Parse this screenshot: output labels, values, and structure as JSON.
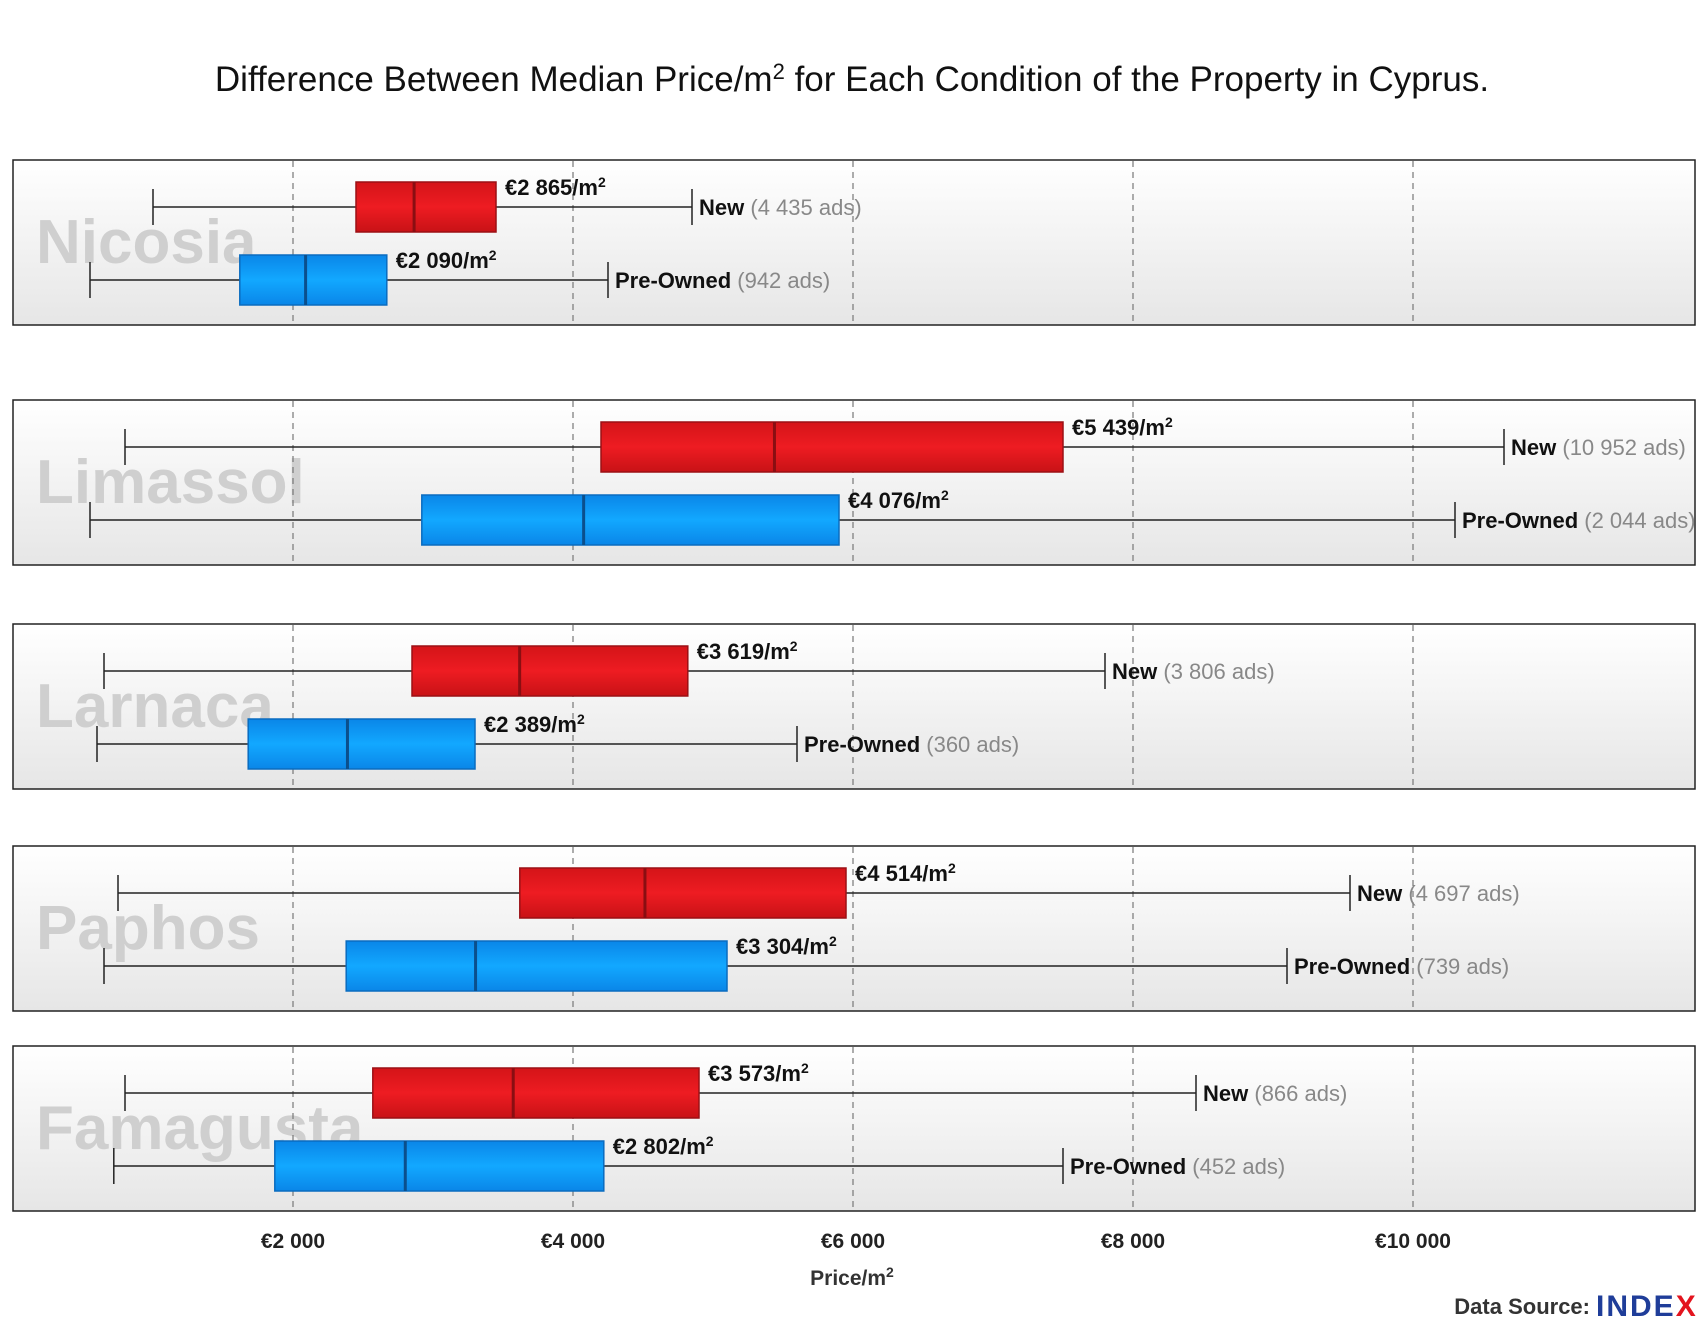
{
  "chart_data": {
    "type": "boxplot",
    "title": "Difference Between Median Price/m",
    "title_sup": "2",
    "title_rest": " for Each Condition of the Property in Cyprus.",
    "xlabel": "Price/m",
    "xlabel_sup": "2",
    "xlim": [
      0,
      12000
    ],
    "xticks": [
      2000,
      4000,
      6000,
      8000,
      10000
    ],
    "xtick_labels": [
      "€2 000",
      "€4 000",
      "€6 000",
      "€8 000",
      "€10 000"
    ],
    "grid": "vertical dashed",
    "value_suffix": "/m",
    "value_sup": "2",
    "colors": {
      "New": "#e41a1c",
      "Pre-Owned": "#0a9cf5"
    },
    "panels": [
      {
        "city": "Nicosia",
        "series": [
          {
            "condition": "New",
            "count_text": "(4 435 ads)",
            "whisker_low": 1000,
            "q1": 2450,
            "median": 2865,
            "q3": 3450,
            "whisker_high": 4850,
            "median_label": "€2 865"
          },
          {
            "condition": "Pre-Owned",
            "count_text": "(942 ads)",
            "whisker_low": 550,
            "q1": 1620,
            "median": 2090,
            "q3": 2670,
            "whisker_high": 4250,
            "median_label": "€2 090"
          }
        ]
      },
      {
        "city": "Limassol",
        "series": [
          {
            "condition": "New",
            "count_text": "(10 952 ads)",
            "whisker_low": 800,
            "q1": 4200,
            "median": 5439,
            "q3": 7500,
            "whisker_high": 10650,
            "median_label": "€5 439"
          },
          {
            "condition": "Pre-Owned",
            "count_text": "(2 044 ads)",
            "whisker_low": 550,
            "q1": 2920,
            "median": 4076,
            "q3": 5900,
            "whisker_high": 10300,
            "median_label": "€4 076"
          }
        ]
      },
      {
        "city": "Larnaca",
        "series": [
          {
            "condition": "New",
            "count_text": "(3 806 ads)",
            "whisker_low": 650,
            "q1": 2850,
            "median": 3619,
            "q3": 4820,
            "whisker_high": 7800,
            "median_label": "€3 619"
          },
          {
            "condition": "Pre-Owned",
            "count_text": "(360 ads)",
            "whisker_low": 600,
            "q1": 1680,
            "median": 2389,
            "q3": 3300,
            "whisker_high": 5600,
            "median_label": "€2 389"
          }
        ]
      },
      {
        "city": "Paphos",
        "series": [
          {
            "condition": "New",
            "count_text": "(4 697 ads)",
            "whisker_low": 750,
            "q1": 3620,
            "median": 4514,
            "q3": 5950,
            "whisker_high": 9550,
            "median_label": "€4 514"
          },
          {
            "condition": "Pre-Owned",
            "count_text": "(739 ads)",
            "whisker_low": 650,
            "q1": 2380,
            "median": 3304,
            "q3": 5100,
            "whisker_high": 9100,
            "median_label": "€3 304"
          }
        ]
      },
      {
        "city": "Famagusta",
        "series": [
          {
            "condition": "New",
            "count_text": "(866 ads)",
            "whisker_low": 800,
            "q1": 2570,
            "median": 3573,
            "q3": 4900,
            "whisker_high": 8450,
            "median_label": "€3 573"
          },
          {
            "condition": "Pre-Owned",
            "count_text": "(452 ads)",
            "whisker_low": 720,
            "q1": 1870,
            "median": 2802,
            "q3": 4220,
            "whisker_high": 7500,
            "median_label": "€2 802"
          }
        ]
      }
    ]
  },
  "source": {
    "label": "Data Source:",
    "brand_a": "INDE",
    "brand_b": "X"
  }
}
